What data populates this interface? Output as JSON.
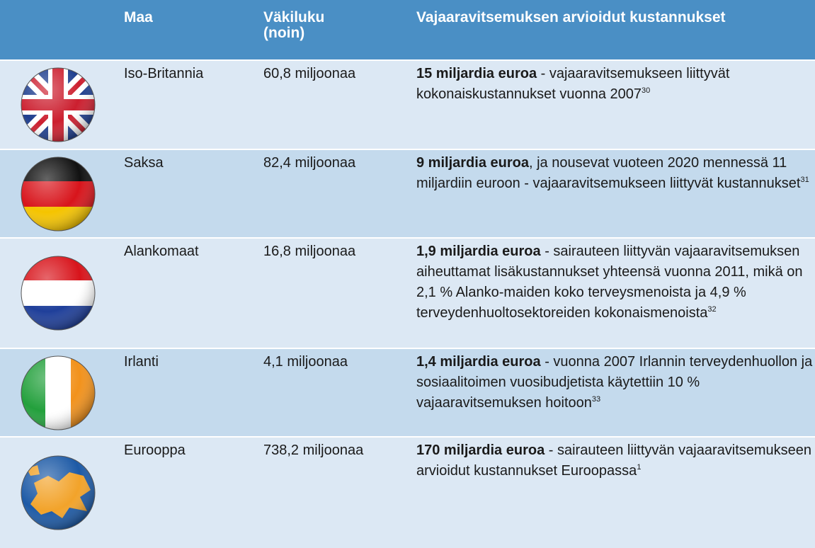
{
  "table": {
    "header": [
      "Maa",
      "Väkiluku (noin)",
      "Vajaaravitsemuksen arvioidut kustannukset"
    ],
    "rows": [
      {
        "country": "Iso-Britannia",
        "population": "60,8 miljoonaa",
        "cost_bold": "15 miljardia euroa",
        "cost_text": " - vajaaravitsemukseen liittyvät kokonaiskustannukset vuonna 2007",
        "ref": "30"
      },
      {
        "country": "Saksa",
        "population": "82,4 miljoonaa",
        "cost_bold": "9 miljardia euroa",
        "cost_text": ", ja nousevat vuoteen 2020 mennessä 11 miljardiin euroon - vajaaravitsemukseen liittyvät kustannukset",
        "ref": "31"
      },
      {
        "country": "Alankomaat",
        "population": "16,8 miljoonaa",
        "cost_bold": "1,9 miljardia euroa",
        "cost_text": " - sairauteen liittyvän vajaaravitsemuksen aiheuttamat lisäkustannukset yhteensä vuonna 2011, mikä on 2,1 % Alanko-maiden koko terveysmenoista ja 4,9 % terveydenhuoltosektoreiden kokonaismenoista",
        "ref": "32"
      },
      {
        "country": "Irlanti",
        "population": "4,1 miljoonaa",
        "cost_bold": "1,4 miljardia euroa",
        "cost_text": " - vuonna 2007 Irlannin terveydenhuollon ja sosiaalitoimen vuosibudjetista käytettiin 10 % vajaaravitsemuksen hoitoon",
        "ref": "33"
      },
      {
        "country": "Eurooppa",
        "population": "738,2 miljoonaa",
        "cost_bold": "170 miljardia euroa",
        "cost_text": "  - sairauteen liittyvän vajaaravitsemukseen arvioidut kustannukset Euroopassa",
        "ref": "1"
      }
    ]
  }
}
